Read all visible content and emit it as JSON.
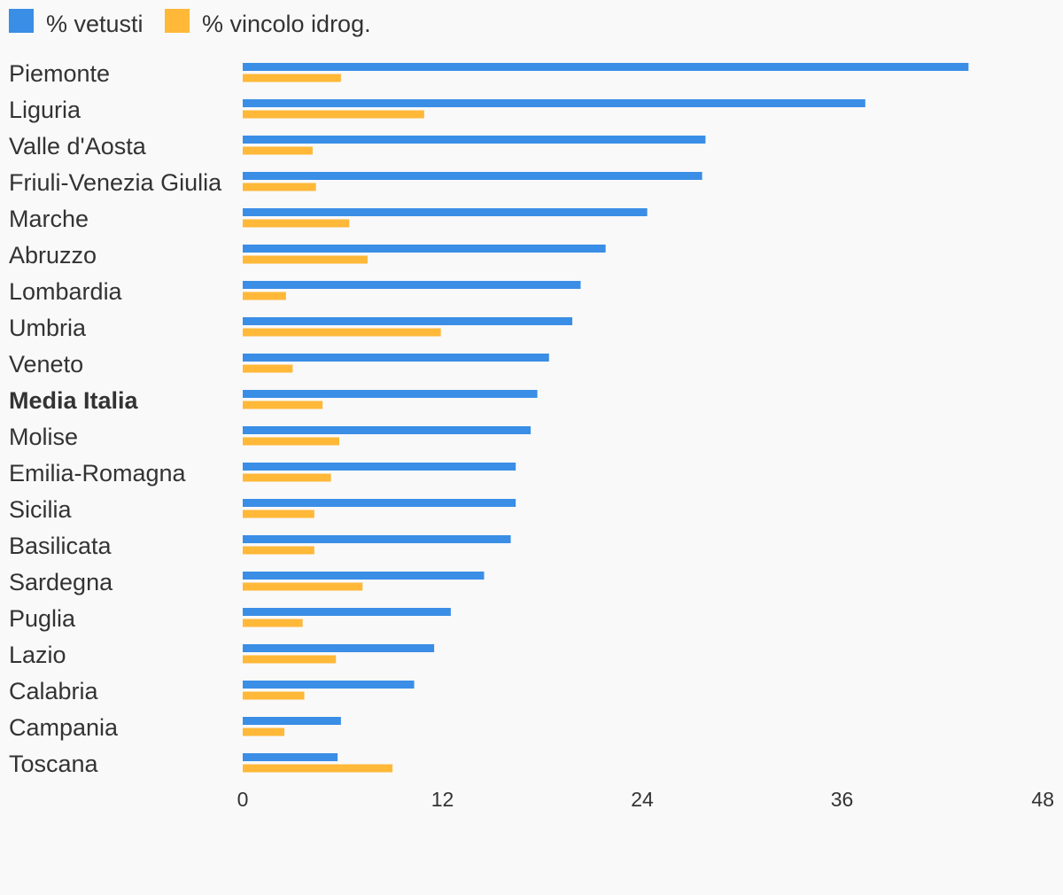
{
  "chart_data": {
    "type": "bar",
    "orientation": "horizontal",
    "categories": [
      "Piemonte",
      "Liguria",
      "Valle d'Aosta",
      "Friuli-Venezia Giulia",
      "Marche",
      "Abruzzo",
      "Lombardia",
      "Umbria",
      "Veneto",
      "Media Italia",
      "Molise",
      "Emilia-Romagna",
      "Sicilia",
      "Basilicata",
      "Sardegna",
      "Puglia",
      "Lazio",
      "Calabria",
      "Campania",
      "Toscana"
    ],
    "highlight_category": "Media Italia",
    "series": [
      {
        "name": "% vetusti",
        "color": "#3a8ee6",
        "values": [
          43.6,
          37.4,
          27.8,
          27.6,
          24.3,
          21.8,
          20.3,
          19.8,
          18.4,
          17.7,
          17.3,
          16.4,
          16.4,
          16.1,
          14.5,
          12.5,
          11.5,
          10.3,
          5.9,
          5.7
        ]
      },
      {
        "name": "% vincolo idrog.",
        "color": "#ffb838",
        "values": [
          5.9,
          10.9,
          4.2,
          4.4,
          6.4,
          7.5,
          2.6,
          11.9,
          3.0,
          4.8,
          5.8,
          5.3,
          4.3,
          4.3,
          7.2,
          3.6,
          5.6,
          3.7,
          2.5,
          9.0
        ]
      }
    ],
    "xlim": [
      0,
      48
    ],
    "xticks": [
      "0",
      "12",
      "24",
      "36",
      "48"
    ],
    "grid": false,
    "legend_position": "top-left",
    "title": "",
    "xlabel": "",
    "ylabel": ""
  }
}
